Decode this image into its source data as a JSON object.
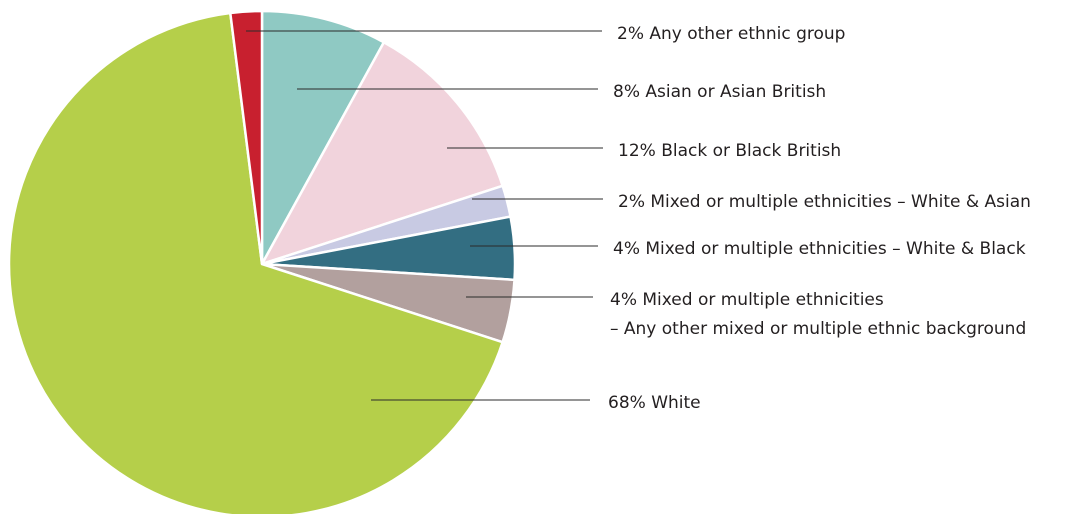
{
  "chart_data": {
    "type": "pie",
    "title": "",
    "start": "12 o'clock",
    "direction": "clockwise",
    "slices": [
      {
        "name": "Asian or Asian British",
        "value": 8,
        "color": "#8fc9c3",
        "label_lines": [
          "8% Asian or Asian British"
        ]
      },
      {
        "name": "Black or Black British",
        "value": 12,
        "color": "#f1d3dc",
        "label_lines": [
          "12% Black or Black British"
        ]
      },
      {
        "name": "Mixed or multiple ethnicities – White & Asian",
        "value": 2,
        "color": "#c8cae3",
        "label_lines": [
          "2% Mixed or multiple ethnicities – White & Asian"
        ]
      },
      {
        "name": "Mixed or multiple ethnicities – White & Black",
        "value": 4,
        "color": "#336e82",
        "label_lines": [
          "4% Mixed or multiple ethnicities – White & Black"
        ]
      },
      {
        "name": "Mixed or multiple ethnicities – Any other mixed or multiple ethnic background",
        "value": 4,
        "color": "#b2a09e",
        "label_lines": [
          "4% Mixed or multiple ethnicities",
          "– Any other mixed or multiple ethnic background"
        ]
      },
      {
        "name": "White",
        "value": 68,
        "color": "#b5cf4a",
        "label_lines": [
          "68% White"
        ]
      },
      {
        "name": "Any other ethnic group",
        "value": 2,
        "color": "#c8202f",
        "label_lines": [
          "2% Any other ethnic group"
        ]
      }
    ]
  }
}
